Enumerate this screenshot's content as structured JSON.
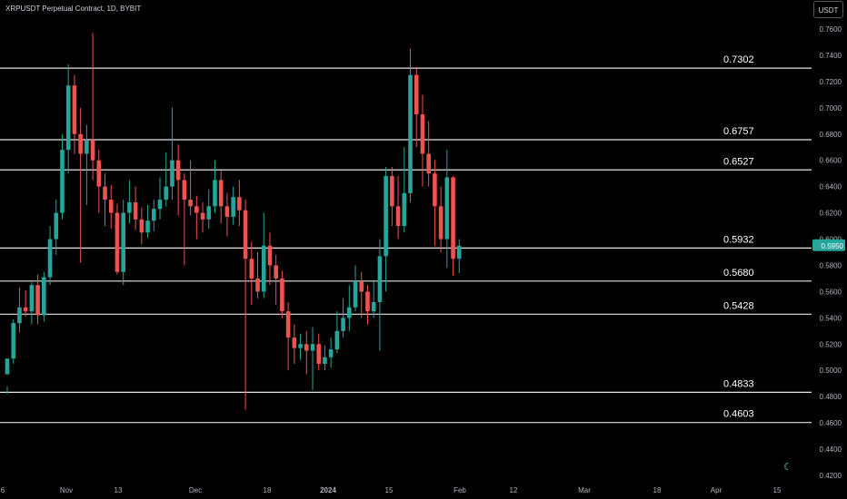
{
  "header": {
    "title": "XRPUSDT Perpetual Contract, 1D, BYBIT",
    "currency_button": "USDT"
  },
  "chart_data": {
    "type": "candlestick",
    "ylim": [
      0.42,
      0.765
    ],
    "y_ticks": [
      "0.7600",
      "0.7400",
      "0.7200",
      "0.7000",
      "0.6800",
      "0.6600",
      "0.6400",
      "0.6200",
      "0.6000",
      "0.5800",
      "0.5600",
      "0.5400",
      "0.5200",
      "0.5000",
      "0.4800",
      "0.4600",
      "0.4400",
      "0.4200"
    ],
    "x_ticks": [
      "6",
      "Nov",
      "13",
      "Dec",
      "18",
      "2024",
      "15",
      "Feb",
      "12",
      "Mar",
      "18",
      "Apr",
      "15"
    ],
    "levels": [
      {
        "label": "0.7302",
        "value": 0.7302
      },
      {
        "label": "0.6757",
        "value": 0.6757
      },
      {
        "label": "0.6527",
        "value": 0.6527
      },
      {
        "label": "0.5932",
        "value": 0.5932
      },
      {
        "label": "0.5680",
        "value": 0.568
      },
      {
        "label": "0.5428",
        "value": 0.5428
      },
      {
        "label": "0.4833",
        "value": 0.4833
      },
      {
        "label": "0.4603",
        "value": 0.4603
      }
    ],
    "last_price": {
      "label": "0.5950",
      "value": 0.595
    },
    "up_color": "#26a69a",
    "down_color": "#ef5350",
    "candles": [
      [
        0.497,
        0.509,
        0.488,
        0.482
      ],
      [
        0.509,
        0.536,
        0.539,
        0.505
      ],
      [
        0.536,
        0.548,
        0.563,
        0.529
      ],
      [
        0.548,
        0.545,
        0.561,
        0.541
      ],
      [
        0.545,
        0.565,
        0.567,
        0.535
      ],
      [
        0.565,
        0.542,
        0.573,
        0.535
      ],
      [
        0.542,
        0.571,
        0.575,
        0.537
      ],
      [
        0.571,
        0.6,
        0.61,
        0.565
      ],
      [
        0.6,
        0.62,
        0.63,
        0.588
      ],
      [
        0.62,
        0.668,
        0.68,
        0.615
      ],
      [
        0.668,
        0.717,
        0.733,
        0.65
      ],
      [
        0.717,
        0.68,
        0.725,
        0.665
      ],
      [
        0.68,
        0.665,
        0.7,
        0.582
      ],
      [
        0.665,
        0.675,
        0.687,
        0.626
      ],
      [
        0.675,
        0.66,
        0.757,
        0.645
      ],
      [
        0.66,
        0.64,
        0.668,
        0.62
      ],
      [
        0.64,
        0.63,
        0.65,
        0.61
      ],
      [
        0.63,
        0.62,
        0.641,
        0.608
      ],
      [
        0.62,
        0.575,
        0.627,
        0.573
      ],
      [
        0.575,
        0.62,
        0.63,
        0.565
      ],
      [
        0.62,
        0.628,
        0.645,
        0.612
      ],
      [
        0.628,
        0.615,
        0.64,
        0.607
      ],
      [
        0.615,
        0.605,
        0.624,
        0.596
      ],
      [
        0.605,
        0.614,
        0.626,
        0.601
      ],
      [
        0.614,
        0.623,
        0.63,
        0.606
      ],
      [
        0.623,
        0.63,
        0.647,
        0.615
      ],
      [
        0.63,
        0.64,
        0.666,
        0.625
      ],
      [
        0.64,
        0.66,
        0.7,
        0.63
      ],
      [
        0.66,
        0.645,
        0.672,
        0.618
      ],
      [
        0.645,
        0.63,
        0.65,
        0.58
      ],
      [
        0.63,
        0.625,
        0.66,
        0.618
      ],
      [
        0.625,
        0.62,
        0.633,
        0.6
      ],
      [
        0.62,
        0.615,
        0.628,
        0.605
      ],
      [
        0.615,
        0.625,
        0.638,
        0.608
      ],
      [
        0.625,
        0.645,
        0.66,
        0.62
      ],
      [
        0.645,
        0.625,
        0.652,
        0.612
      ],
      [
        0.625,
        0.617,
        0.635,
        0.602
      ],
      [
        0.617,
        0.632,
        0.64,
        0.611
      ],
      [
        0.632,
        0.622,
        0.645,
        0.61
      ],
      [
        0.622,
        0.585,
        0.63,
        0.47
      ],
      [
        0.585,
        0.57,
        0.598,
        0.55
      ],
      [
        0.57,
        0.56,
        0.59,
        0.555
      ],
      [
        0.56,
        0.595,
        0.62,
        0.555
      ],
      [
        0.595,
        0.58,
        0.605,
        0.565
      ],
      [
        0.58,
        0.57,
        0.588,
        0.55
      ],
      [
        0.57,
        0.545,
        0.576,
        0.54
      ],
      [
        0.545,
        0.525,
        0.552,
        0.5
      ],
      [
        0.525,
        0.517,
        0.535,
        0.505
      ],
      [
        0.517,
        0.52,
        0.528,
        0.508
      ],
      [
        0.52,
        0.515,
        0.53,
        0.497
      ],
      [
        0.515,
        0.52,
        0.533,
        0.485
      ],
      [
        0.52,
        0.505,
        0.528,
        0.5
      ],
      [
        0.505,
        0.51,
        0.519,
        0.5
      ],
      [
        0.51,
        0.516,
        0.525,
        0.502
      ],
      [
        0.516,
        0.53,
        0.545,
        0.513
      ],
      [
        0.53,
        0.54,
        0.555,
        0.525
      ],
      [
        0.54,
        0.548,
        0.565,
        0.53
      ],
      [
        0.548,
        0.568,
        0.58,
        0.545
      ],
      [
        0.568,
        0.56,
        0.575,
        0.54
      ],
      [
        0.56,
        0.545,
        0.565,
        0.535
      ],
      [
        0.545,
        0.552,
        0.568,
        0.54
      ],
      [
        0.552,
        0.587,
        0.6,
        0.515
      ],
      [
        0.587,
        0.648,
        0.655,
        0.56
      ],
      [
        0.648,
        0.625,
        0.655,
        0.61
      ],
      [
        0.625,
        0.61,
        0.648,
        0.6
      ],
      [
        0.61,
        0.635,
        0.67,
        0.605
      ],
      [
        0.635,
        0.725,
        0.745,
        0.628
      ],
      [
        0.725,
        0.695,
        0.73,
        0.67
      ],
      [
        0.695,
        0.665,
        0.71,
        0.64
      ],
      [
        0.665,
        0.65,
        0.69,
        0.64
      ],
      [
        0.65,
        0.625,
        0.66,
        0.595
      ],
      [
        0.625,
        0.6,
        0.64,
        0.59
      ],
      [
        0.6,
        0.647,
        0.668,
        0.578
      ],
      [
        0.647,
        0.585,
        0.648,
        0.572
      ],
      [
        0.585,
        0.595,
        0.6,
        0.574
      ]
    ]
  },
  "icons": {
    "theme": "moon-icon"
  }
}
